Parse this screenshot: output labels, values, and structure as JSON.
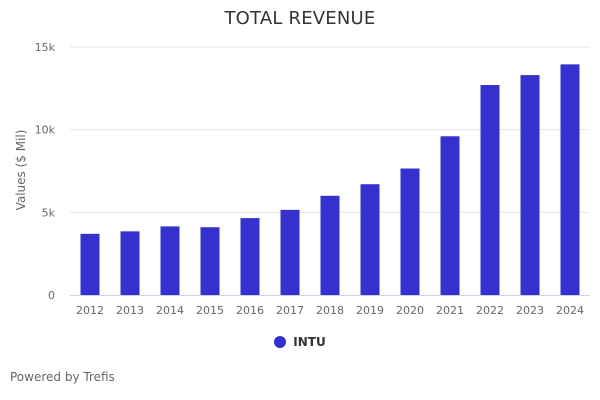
{
  "chart_title": "TOTAL REVENUE",
  "credit": "Powered by Trefis",
  "colors": {
    "bar": "#3531cc",
    "grid": "#e6e6e6",
    "axis": "#ccd6eb",
    "tick_text": "#666666"
  },
  "chart_data": {
    "type": "bar",
    "title": "TOTAL REVENUE",
    "xlabel": "",
    "ylabel": "Values ($ Mil)",
    "categories": [
      "2012",
      "2013",
      "2014",
      "2015",
      "2016",
      "2017",
      "2018",
      "2019",
      "2020",
      "2021",
      "2022",
      "2023",
      "2024"
    ],
    "series": [
      {
        "name": "INTU",
        "values": [
          3700,
          3850,
          4150,
          4100,
          4650,
          5150,
          6000,
          6700,
          7650,
          9600,
          12700,
          13300,
          13950
        ]
      }
    ],
    "ylim": [
      0,
      15000
    ],
    "yticks": [
      0,
      5000,
      10000,
      15000
    ],
    "ytick_labels": [
      "0",
      "5k",
      "10k",
      "15k"
    ],
    "grid": true,
    "legend_position": "bottom-center"
  }
}
